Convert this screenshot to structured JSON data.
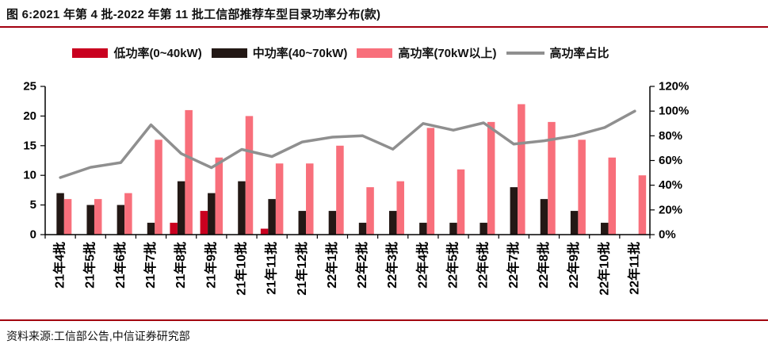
{
  "page": {
    "title": "图 6:2021 年第 4 批-2022 年第 11 批工信部推荐车型目录功率分布(款)",
    "source_note": "资料来源:工信部公告,中信证券研究部"
  },
  "colors": {
    "accent_rule": "#A3000F",
    "low_power": "#C9001F",
    "mid_power": "#231815",
    "high_power": "#F86F7B",
    "ratio_line": "#8F8F8F",
    "axis": "#000000"
  },
  "chart_data": {
    "type": "bar",
    "subtype": "grouped bars with secondary-axis line",
    "title": "2021 年第 4 批-2022 年第 11 批工信部推荐车型目录功率分布(款)",
    "xlabel": "",
    "ylabel": "",
    "grid": "off",
    "legend_position": "top",
    "categories": [
      "21年4批",
      "21年5批",
      "21年6批",
      "21年7批",
      "21年8批",
      "21年9批",
      "21年10批",
      "21年11批",
      "21年12批",
      "22年1批",
      "22年2批",
      "22年3批",
      "22年4批",
      "22年5批",
      "22年6批",
      "22年7批",
      "22年8批",
      "22年9批",
      "22年10批",
      "22年11批"
    ],
    "series": [
      {
        "name": "低功率(0~40kW)",
        "type": "bar",
        "axis": "left",
        "color": "#C9001F",
        "values": [
          0,
          0,
          0,
          0,
          2,
          4,
          0,
          1,
          0,
          0,
          0,
          0,
          0,
          0,
          0,
          0,
          0,
          0,
          0,
          0
        ]
      },
      {
        "name": "中功率(40~70kW)",
        "type": "bar",
        "axis": "left",
        "color": "#231815",
        "values": [
          7,
          5,
          5,
          2,
          9,
          7,
          9,
          6,
          4,
          4,
          2,
          4,
          2,
          2,
          2,
          8,
          6,
          4,
          2,
          0
        ]
      },
      {
        "name": "高功率(70kW以上)",
        "type": "bar",
        "axis": "left",
        "color": "#F86F7B",
        "values": [
          6,
          6,
          7,
          16,
          21,
          13,
          20,
          12,
          12,
          15,
          8,
          9,
          18,
          11,
          19,
          22,
          19,
          16,
          13,
          10
        ]
      },
      {
        "name": "高功率占比",
        "type": "line",
        "axis": "right",
        "color": "#8F8F8F",
        "values_pct": [
          46.2,
          54.5,
          58.3,
          88.9,
          65.6,
          54.2,
          69.0,
          63.2,
          75.0,
          78.9,
          80.0,
          69.2,
          90.0,
          84.6,
          90.5,
          73.3,
          76.0,
          80.0,
          86.7,
          100.0
        ]
      }
    ],
    "left_axis": {
      "min": 0,
      "max": 25,
      "tick_values": [
        0,
        5,
        10,
        15,
        20,
        25
      ],
      "tick_labels": [
        "0",
        "5",
        "10",
        "15",
        "20",
        "25"
      ]
    },
    "right_axis": {
      "min_pct": 0,
      "max_pct": 120,
      "tick_values": [
        0,
        20,
        40,
        60,
        80,
        100,
        120
      ],
      "tick_labels": [
        "0%",
        "20%",
        "40%",
        "60%",
        "80%",
        "100%",
        "120%"
      ]
    }
  }
}
